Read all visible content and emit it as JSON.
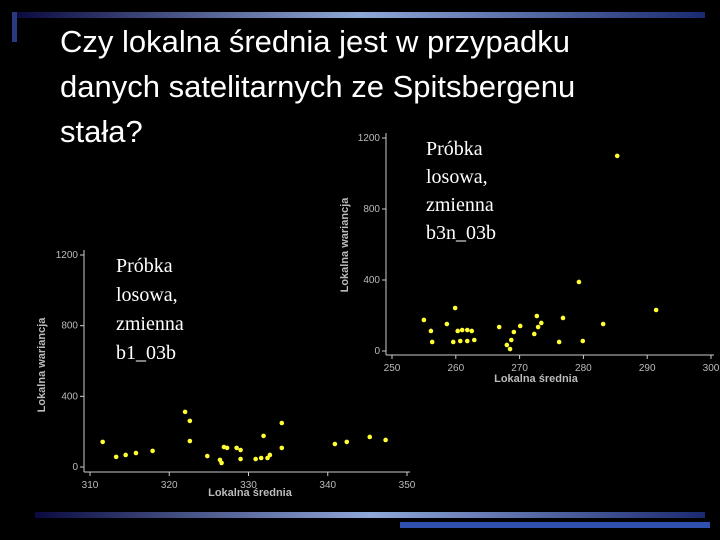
{
  "title": [
    "Czy lokalna średnia jest w przypadku",
    "danych satelitarnych ze Spitsbergenu",
    "stała?"
  ],
  "chart_data": [
    {
      "type": "scatter",
      "annotation": [
        "Próbka",
        "losowa,",
        "zmienna",
        "b1_03b"
      ],
      "x_label": "Lokalna średnia",
      "y_label": "Lokalna wariancja",
      "color": "#ffff33",
      "xlim": [
        310,
        350
      ],
      "ylim": [
        0,
        1200
      ],
      "xticks": [
        310,
        320,
        330,
        340,
        350
      ],
      "yticks": [
        0,
        400,
        800,
        1200
      ],
      "x": [
        311.6,
        313.3,
        314.5,
        315.8,
        317.9,
        322.0,
        322.6,
        322.6,
        324.8,
        326.4,
        326.6,
        326.9,
        327.3,
        328.5,
        329.0,
        329.0,
        330.9,
        331.6,
        331.9,
        332.4,
        332.7,
        334.2,
        334.2,
        340.9,
        342.4,
        345.3,
        347.3
      ],
      "values": [
        142,
        57,
        68,
        79,
        91,
        312,
        261,
        147,
        62,
        40,
        23,
        113,
        108,
        108,
        96,
        45,
        45,
        51,
        176,
        51,
        68,
        249,
        108,
        130,
        142,
        170,
        153
      ]
    },
    {
      "type": "scatter",
      "annotation": [
        "Próbka",
        "losowa,",
        "zmienna",
        "b3n_03b"
      ],
      "x_label": "Lokalna średnia",
      "y_label": "Lokalna wariancja",
      "color": "#ffff33",
      "xlim": [
        250,
        300
      ],
      "ylim": [
        0,
        1200
      ],
      "xticks": [
        250,
        260,
        270,
        280,
        290,
        300
      ],
      "yticks": [
        0,
        400,
        800,
        1200
      ],
      "x": [
        285.3,
        279.3,
        259.9,
        255.0,
        258.6,
        260.3,
        261.0,
        261.8,
        262.5,
        256.1,
        266.8,
        270.1,
        269.1,
        272.7,
        273.4,
        272.9,
        272.3,
        276.8,
        283.1,
        291.4,
        279.9,
        256.3,
        259.6,
        260.7,
        261.8,
        262.9,
        268.7,
        268.0,
        268.5,
        276.2
      ],
      "values": [
        1099,
        389,
        242,
        175,
        152,
        113,
        118,
        118,
        113,
        113,
        135,
        141,
        107,
        197,
        158,
        135,
        96,
        186,
        152,
        231,
        56,
        51,
        51,
        56,
        56,
        62,
        62,
        34,
        11,
        51
      ]
    }
  ]
}
